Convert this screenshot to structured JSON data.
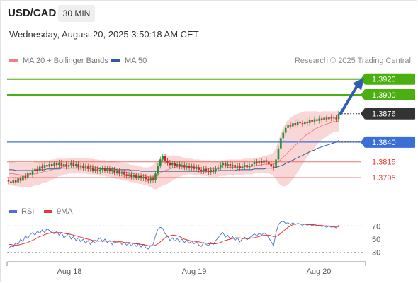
{
  "header": {
    "symbol": "USD/CAD",
    "timeframe": "30 MIN",
    "datetime": "Wednesday, August 20, 2025 3:50:18 AM CET",
    "credit": "Research © 2025 Trading Central"
  },
  "legend": {
    "ma20": "MA 20 + Bollinger Bands",
    "ma50": "MA 50",
    "rsi": "RSI",
    "ma9": "9MA"
  },
  "colors": {
    "up": "#2e8b3a",
    "down": "#c62828",
    "ma20": "#f08080",
    "ma50": "#2f5b9e",
    "bands": "#f8c9c9",
    "resistance": "#4caf10",
    "support": "#3a6fd8",
    "support_red": "#e53935",
    "rsi_line": "#4a74d0",
    "rsi_ma": "#e53935",
    "current": "#333333",
    "arrow": "#2f5fa8"
  },
  "chart_data": [
    {
      "type": "candlestick",
      "title": "USD/CAD",
      "timeframe": "30 MIN",
      "x_labels": [
        "Aug 18",
        "Aug 19",
        "Aug 20"
      ],
      "ylim": [
        1.376,
        1.3935
      ],
      "levels": [
        {
          "value": 1.392,
          "label": "1.3920",
          "kind": "resistance"
        },
        {
          "value": 1.39,
          "label": "1.3900",
          "kind": "resistance"
        },
        {
          "value": 1.3876,
          "label": "1.3876",
          "kind": "current"
        },
        {
          "value": 1.384,
          "label": "1.3840",
          "kind": "pivot"
        },
        {
          "value": 1.3815,
          "label": "1.3815",
          "kind": "support"
        },
        {
          "value": 1.3795,
          "label": "1.3795",
          "kind": "support"
        }
      ],
      "close": [
        1.379,
        1.3788,
        1.3792,
        1.3789,
        1.3794,
        1.3791,
        1.3797,
        1.3795,
        1.3801,
        1.3799,
        1.3803,
        1.3806,
        1.3804,
        1.3809,
        1.3807,
        1.3811,
        1.3809,
        1.3812,
        1.381,
        1.3813,
        1.3811,
        1.3814,
        1.381,
        1.3812,
        1.3809,
        1.3811,
        1.3814,
        1.381,
        1.3812,
        1.3808,
        1.381,
        1.3807,
        1.3809,
        1.3806,
        1.3808,
        1.3804,
        1.3806,
        1.3803,
        1.3805,
        1.3807,
        1.3804,
        1.3806,
        1.3803,
        1.3805,
        1.3801,
        1.3803,
        1.38,
        1.3802,
        1.3799,
        1.3797,
        1.3799,
        1.3796,
        1.3798,
        1.3795,
        1.3797,
        1.3794,
        1.3796,
        1.3793,
        1.3791,
        1.3794,
        1.3792,
        1.38,
        1.381,
        1.3818,
        1.3822,
        1.3816,
        1.3814,
        1.3811,
        1.3813,
        1.381,
        1.3812,
        1.3809,
        1.3811,
        1.3808,
        1.381,
        1.3807,
        1.3809,
        1.3806,
        1.3808,
        1.3805,
        1.3803,
        1.3806,
        1.3804,
        1.3802,
        1.3805,
        1.3803,
        1.3806,
        1.3808,
        1.3811,
        1.3813,
        1.381,
        1.3812,
        1.3809,
        1.3811,
        1.3808,
        1.381,
        1.3807,
        1.3809,
        1.3811,
        1.3808,
        1.381,
        1.3812,
        1.3815,
        1.3813,
        1.3816,
        1.3814,
        1.3817,
        1.3815,
        1.3812,
        1.3809,
        1.3807,
        1.3818,
        1.3832,
        1.3845,
        1.3852,
        1.3858,
        1.3862,
        1.386,
        1.3864,
        1.3862,
        1.3866,
        1.3864,
        1.3863,
        1.3866,
        1.3864,
        1.3868,
        1.3866,
        1.3869,
        1.3867,
        1.387,
        1.3868,
        1.3871,
        1.3869,
        1.3872,
        1.387,
        1.3871,
        1.3869,
        1.3876
      ],
      "ma20": [
        1.38,
        1.38,
        1.38,
        1.3799,
        1.3799,
        1.3798,
        1.3798,
        1.3798,
        1.3798,
        1.3798,
        1.3799,
        1.38,
        1.38,
        1.3801,
        1.3802,
        1.3803,
        1.3803,
        1.3804,
        1.3805,
        1.3806,
        1.3807,
        1.3808,
        1.3808,
        1.3809,
        1.3809,
        1.381,
        1.381,
        1.381,
        1.381,
        1.381,
        1.381,
        1.381,
        1.381,
        1.3809,
        1.3809,
        1.3809,
        1.3808,
        1.3808,
        1.3807,
        1.3807,
        1.3807,
        1.3806,
        1.3806,
        1.3805,
        1.3805,
        1.3804,
        1.3804,
        1.3803,
        1.3802,
        1.3802,
        1.3801,
        1.38,
        1.38,
        1.3799,
        1.3798,
        1.3798,
        1.3797,
        1.3797,
        1.3796,
        1.3796,
        1.3796,
        1.3797,
        1.3799,
        1.3801,
        1.3803,
        1.3804,
        1.3805,
        1.3806,
        1.3807,
        1.3808,
        1.3809,
        1.3809,
        1.3809,
        1.3809,
        1.3809,
        1.3809,
        1.3809,
        1.3808,
        1.3808,
        1.3808,
        1.3807,
        1.3807,
        1.3807,
        1.3806,
        1.3806,
        1.3806,
        1.3806,
        1.3806,
        1.3807,
        1.3807,
        1.3807,
        1.3808,
        1.3808,
        1.3808,
        1.3808,
        1.3808,
        1.3808,
        1.3808,
        1.3809,
        1.3809,
        1.3809,
        1.3809,
        1.381,
        1.381,
        1.3811,
        1.3811,
        1.3812,
        1.3812,
        1.3812,
        1.3812,
        1.3812,
        1.3813,
        1.3815,
        1.3818,
        1.3821,
        1.3824,
        1.3827,
        1.383,
        1.3833,
        1.3836,
        1.3839,
        1.3842,
        1.3845,
        1.3848,
        1.385,
        1.3852,
        1.3854,
        1.3856,
        1.3858,
        1.3859,
        1.3861,
        1.3862,
        1.3863,
        1.3864,
        1.3865,
        1.3866,
        1.3866,
        1.3867
      ],
      "ma50": [
        1.3805,
        1.3805,
        1.3805,
        1.3804,
        1.3804,
        1.3804,
        1.3804,
        1.3804,
        1.3804,
        1.3804,
        1.3804,
        1.3804,
        1.3805,
        1.3805,
        1.3805,
        1.3805,
        1.3806,
        1.3806,
        1.3806,
        1.3806,
        1.3806,
        1.3806,
        1.3807,
        1.3807,
        1.3807,
        1.3807,
        1.3807,
        1.3807,
        1.3807,
        1.3807,
        1.3807,
        1.3807,
        1.3807,
        1.3807,
        1.3807,
        1.3807,
        1.3807,
        1.3807,
        1.3806,
        1.3806,
        1.3806,
        1.3806,
        1.3806,
        1.3806,
        1.3806,
        1.3805,
        1.3805,
        1.3805,
        1.3805,
        1.3805,
        1.3805,
        1.3804,
        1.3804,
        1.3804,
        1.3804,
        1.3803,
        1.3803,
        1.3803,
        1.3803,
        1.3803,
        1.3803,
        1.3803,
        1.3803,
        1.3803,
        1.3803,
        1.3803,
        1.3803,
        1.3803,
        1.3803,
        1.3803,
        1.3803,
        1.3803,
        1.3803,
        1.3803,
        1.3803,
        1.3803,
        1.3803,
        1.3803,
        1.3803,
        1.3803,
        1.3803,
        1.3803,
        1.3803,
        1.3803,
        1.3803,
        1.3803,
        1.3803,
        1.3804,
        1.3804,
        1.3804,
        1.3804,
        1.3804,
        1.3804,
        1.3804,
        1.3804,
        1.3805,
        1.3805,
        1.3805,
        1.3805,
        1.3805,
        1.3805,
        1.3805,
        1.3806,
        1.3806,
        1.3806,
        1.3806,
        1.3806,
        1.3807,
        1.3807,
        1.3807,
        1.3807,
        1.3808,
        1.3809,
        1.381,
        1.3811,
        1.3813,
        1.3814,
        1.3816,
        1.3817,
        1.3819,
        1.382,
        1.3822,
        1.3823,
        1.3825,
        1.3826,
        1.3828,
        1.3829,
        1.383,
        1.3832,
        1.3833,
        1.3834,
        1.3835,
        1.3836,
        1.3837,
        1.3838,
        1.3839,
        1.384,
        1.3842
      ],
      "bb_width": [
        0.0015,
        0.0015,
        0.0015,
        0.0015,
        0.0015,
        0.0015,
        0.0015,
        0.0015,
        0.0015,
        0.0015,
        0.0015,
        0.0015,
        0.0015,
        0.0015,
        0.0014,
        0.0014,
        0.0014,
        0.0013,
        0.0013,
        0.0012,
        0.0012,
        0.0011,
        0.0011,
        0.001,
        0.001,
        0.001,
        0.001,
        0.001,
        0.001,
        0.001,
        0.001,
        0.001,
        0.001,
        0.001,
        0.001,
        0.001,
        0.001,
        0.001,
        0.001,
        0.001,
        0.001,
        0.001,
        0.001,
        0.0011,
        0.0011,
        0.0011,
        0.0011,
        0.0011,
        0.0011,
        0.0011,
        0.0011,
        0.0011,
        0.0011,
        0.0011,
        0.0011,
        0.0011,
        0.0011,
        0.0011,
        0.0012,
        0.0013,
        0.0015,
        0.0017,
        0.0018,
        0.0018,
        0.0018,
        0.0018,
        0.0018,
        0.0017,
        0.0016,
        0.0015,
        0.0014,
        0.0013,
        0.0012,
        0.0011,
        0.001,
        0.001,
        0.001,
        0.001,
        0.001,
        0.001,
        0.001,
        0.001,
        0.001,
        0.001,
        0.001,
        0.001,
        0.001,
        0.001,
        0.001,
        0.001,
        0.001,
        0.001,
        0.001,
        0.001,
        0.001,
        0.001,
        0.001,
        0.001,
        0.001,
        0.001,
        0.001,
        0.001,
        0.001,
        0.001,
        0.001,
        0.001,
        0.0011,
        0.0011,
        0.0012,
        0.0013,
        0.0015,
        0.002,
        0.0027,
        0.0033,
        0.0037,
        0.004,
        0.0041,
        0.0041,
        0.004,
        0.0039,
        0.0037,
        0.0035,
        0.0033,
        0.0031,
        0.0029,
        0.0027,
        0.0025,
        0.0023,
        0.0021,
        0.0019,
        0.0018,
        0.0017,
        0.0016,
        0.0015,
        0.0014,
        0.0013,
        0.0013,
        0.0013
      ]
    },
    {
      "type": "line",
      "title": "RSI",
      "ylim": [
        20,
        80
      ],
      "y_ticks": [
        70,
        50,
        30
      ],
      "series": [
        {
          "name": "RSI",
          "values": [
            35,
            40,
            38,
            45,
            42,
            50,
            46,
            55,
            51,
            57,
            60,
            56,
            62,
            59,
            64,
            60,
            66,
            63,
            60,
            58,
            62,
            56,
            60,
            52,
            55,
            58,
            50,
            54,
            48,
            52,
            46,
            50,
            44,
            48,
            42,
            47,
            44,
            49,
            52,
            46,
            50,
            45,
            48,
            42,
            46,
            44,
            47,
            42,
            45,
            41,
            44,
            40,
            44,
            39,
            43,
            38,
            42,
            37,
            35,
            40,
            42,
            55,
            65,
            68,
            66,
            58,
            55,
            48,
            52,
            47,
            51,
            46,
            50,
            45,
            48,
            44,
            47,
            43,
            46,
            41,
            39,
            45,
            42,
            40,
            45,
            42,
            48,
            52,
            57,
            60,
            53,
            56,
            50,
            54,
            48,
            52,
            46,
            50,
            53,
            49,
            52,
            55,
            58,
            55,
            59,
            56,
            60,
            57,
            52,
            46,
            40,
            60,
            72,
            76,
            77,
            74,
            75,
            72,
            75,
            72,
            74,
            73,
            71,
            73,
            71,
            73,
            70,
            72,
            70,
            71,
            69,
            70,
            68,
            70,
            68,
            69,
            67,
            71
          ]
        },
        {
          "name": "9MA",
          "values": [
            42,
            42,
            41,
            41,
            41,
            42,
            43,
            44,
            45,
            47,
            48,
            50,
            52,
            54,
            55,
            57,
            58,
            59,
            60,
            60,
            60,
            60,
            60,
            59,
            58,
            58,
            57,
            56,
            55,
            54,
            53,
            52,
            51,
            50,
            49,
            48,
            48,
            47,
            47,
            47,
            47,
            47,
            47,
            47,
            46,
            46,
            46,
            46,
            45,
            45,
            45,
            44,
            44,
            43,
            43,
            42,
            42,
            41,
            40,
            40,
            40,
            41,
            43,
            46,
            49,
            52,
            54,
            55,
            56,
            56,
            55,
            54,
            52,
            50,
            49,
            48,
            47,
            47,
            46,
            46,
            45,
            44,
            44,
            43,
            43,
            43,
            43,
            44,
            45,
            47,
            48,
            49,
            50,
            51,
            52,
            52,
            52,
            51,
            51,
            51,
            51,
            52,
            52,
            53,
            54,
            55,
            56,
            56,
            56,
            55,
            54,
            54,
            56,
            59,
            62,
            65,
            68,
            70,
            72,
            73,
            73,
            73,
            73,
            73,
            72,
            72,
            72,
            72,
            71,
            71,
            71,
            70,
            70,
            70,
            69,
            69,
            69,
            69
          ]
        }
      ]
    }
  ]
}
